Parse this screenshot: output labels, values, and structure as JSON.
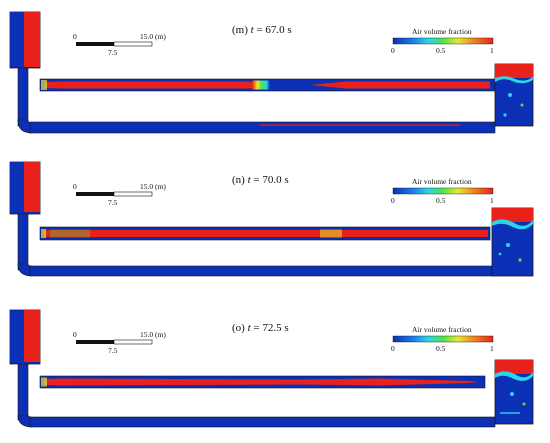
{
  "colors": {
    "water": "#0b2fb5",
    "air": "#e8211b",
    "interface_green": "#4fe34a",
    "interface_yellow": "#e6e832",
    "interface_cyan": "#2ad5e8",
    "frame": "#1a1a1a"
  },
  "legend": {
    "title": "Air volume fraction",
    "ticks": [
      "0",
      "0.5",
      "1"
    ]
  },
  "scale_bar": {
    "label_start": "0",
    "label_end": "15.0 (m)",
    "label_mid": "7.5"
  },
  "panels": [
    {
      "label_prefix": "(m) ",
      "label_var": "t",
      "label_suffix": " = 67.0 s"
    },
    {
      "label_prefix": "(n) ",
      "label_var": "t",
      "label_suffix": " = 70.0 s"
    },
    {
      "label_prefix": "(o) ",
      "label_var": "t",
      "label_suffix": " = 72.5 s"
    }
  ]
}
